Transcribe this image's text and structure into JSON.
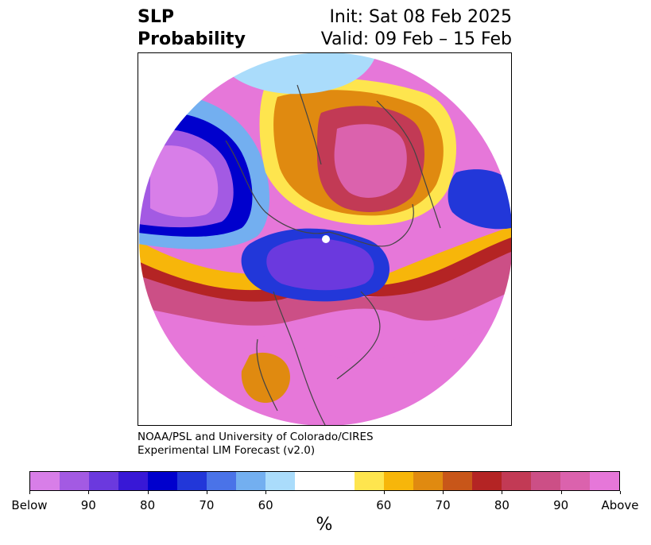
{
  "title": {
    "left_line1": "SLP",
    "left_line2": "Probability",
    "right_line1": "Init: Sat 08 Feb 2025",
    "right_line2": "Valid: 09 Feb – 15 Feb"
  },
  "credit": {
    "line1": "NOAA/PSL and University of Colorado/CIRES",
    "line2": "Experimental LIM Forecast (v2.0)"
  },
  "colorbar": {
    "colors": [
      "#d87ee8",
      "#a35ae3",
      "#6b39de",
      "#3818d6",
      "#0000cd",
      "#2237d9",
      "#4a73e8",
      "#73aff0",
      "#aadcfb",
      "#ffffff",
      "#ffffff",
      "#fee54e",
      "#f7b60a",
      "#e08a10",
      "#c85619",
      "#b42424",
      "#c23a55",
      "#cc4f86",
      "#db62ad",
      "#e677d9"
    ],
    "labels": [
      "Below",
      "90",
      "80",
      "70",
      "60",
      "60",
      "70",
      "80",
      "90",
      "Above"
    ],
    "unit": "%"
  }
}
